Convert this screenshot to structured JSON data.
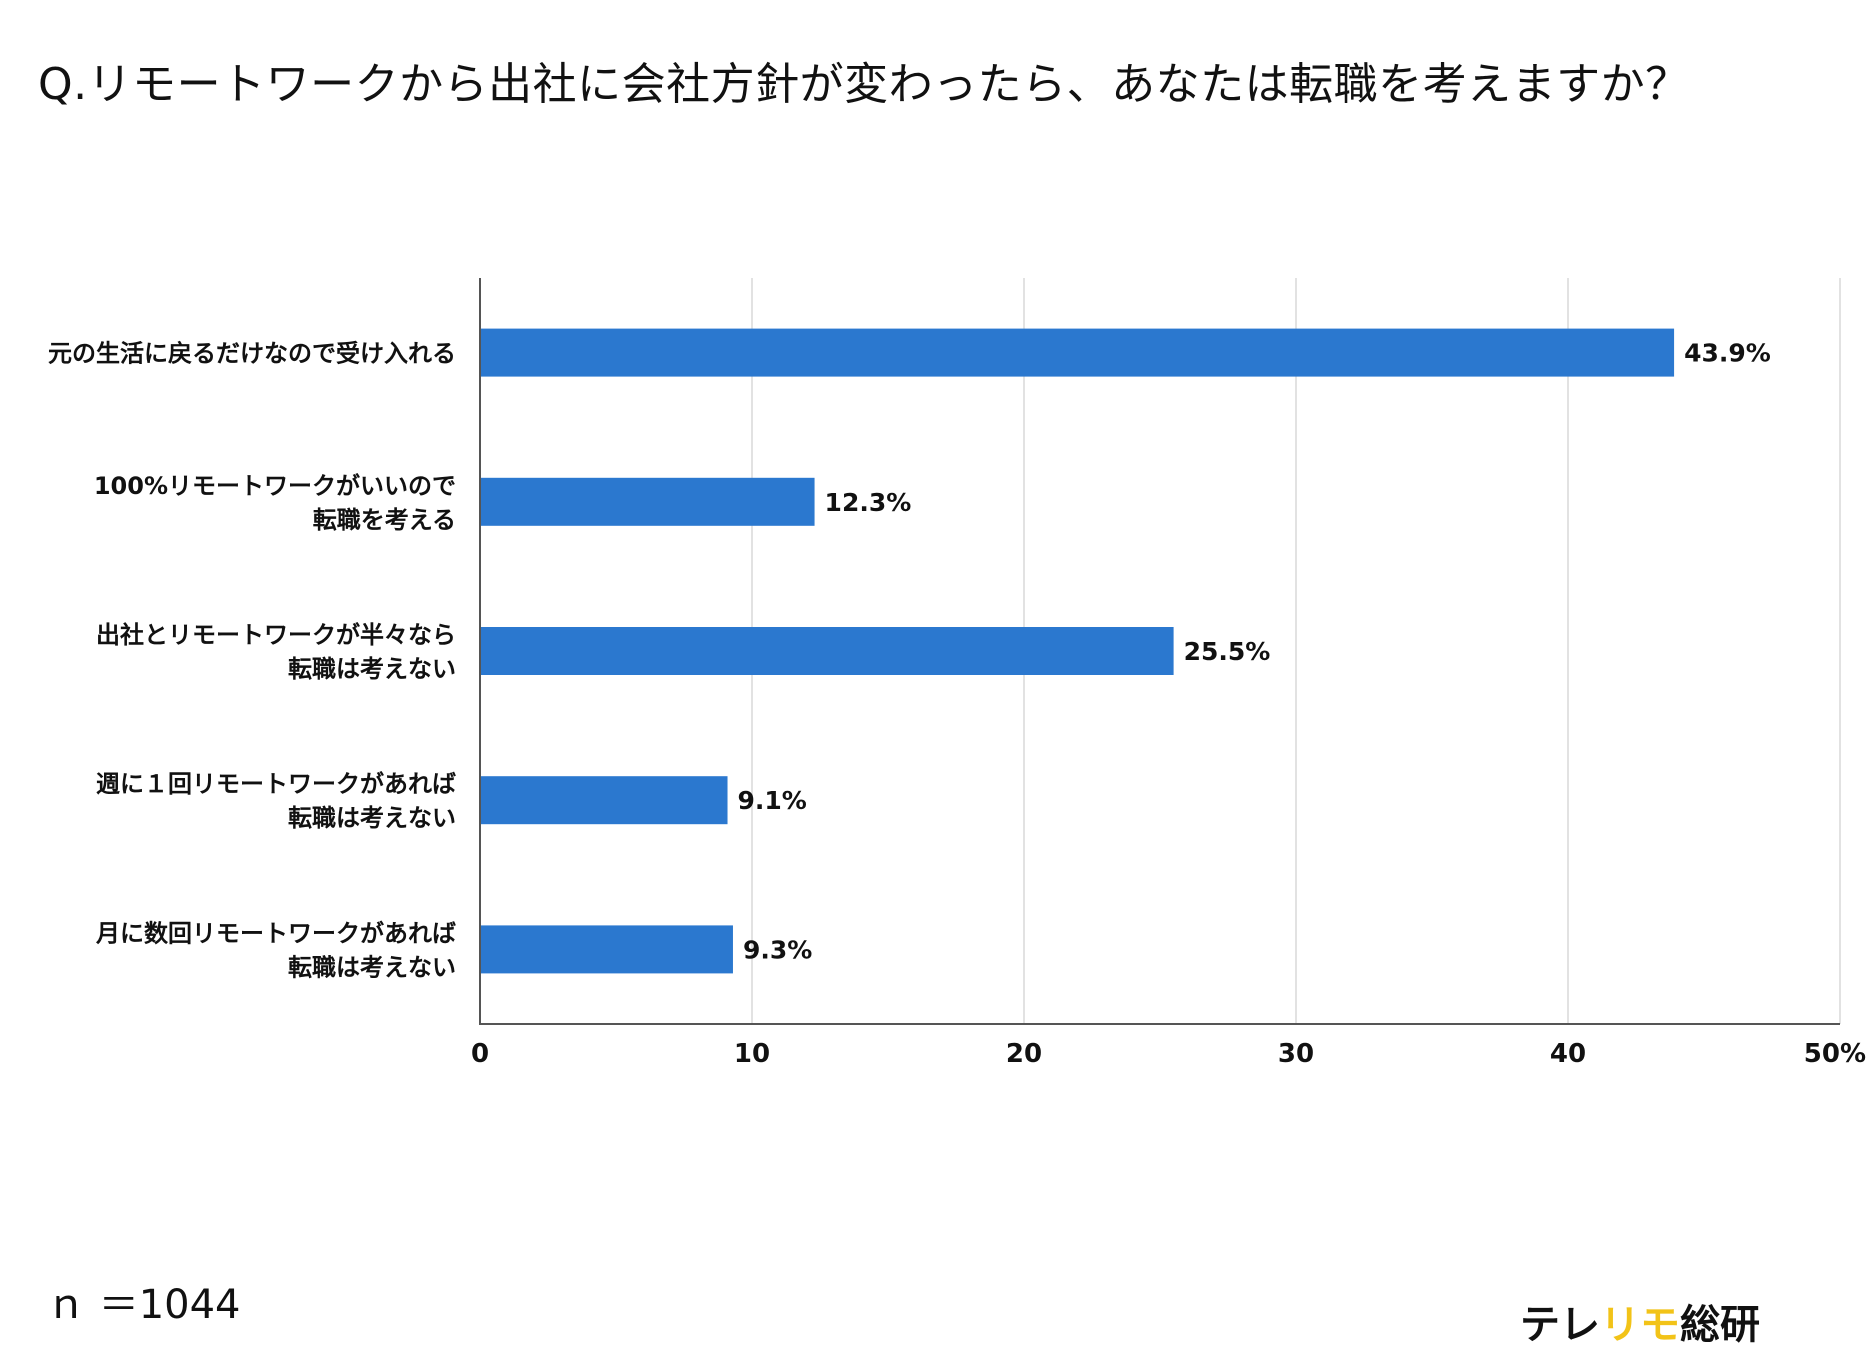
{
  "chart_data": {
    "type": "bar",
    "orientation": "horizontal",
    "title": "Q.リモートワークから出社に会社方針が変わったら、あなたは転職を考えますか？",
    "categories": [
      [
        "元の生活に戻るだけなので受け入れる"
      ],
      [
        "100%リモートワークがいいので",
        "転職を考える"
      ],
      [
        "出社とリモートワークが半々なら",
        "転職は考えない"
      ],
      [
        "週に１回リモートワークがあれば",
        "転職は考えない"
      ],
      [
        "月に数回リモートワークがあれば",
        "転職は考えない"
      ]
    ],
    "values": [
      43.9,
      12.3,
      25.5,
      9.1,
      9.3
    ],
    "value_labels": [
      "43.9%",
      "12.3%",
      "25.5%",
      "9.1%",
      "9.3%"
    ],
    "xlim": [
      0,
      50
    ],
    "x_ticks": [
      0,
      10,
      20,
      30,
      40,
      50
    ],
    "x_tick_labels": [
      "0",
      "10",
      "20",
      "30",
      "40",
      "50%"
    ],
    "grid": true,
    "bar_color": "#2b78cf",
    "grid_color": "#e2e2e2",
    "axis_color": "#555555"
  },
  "footer": {
    "sample_size": "ｎ ＝1044"
  },
  "logo": {
    "part1": "テレ",
    "part2": "リモ",
    "part3": "総研",
    "accent_color": "#f2c318"
  }
}
